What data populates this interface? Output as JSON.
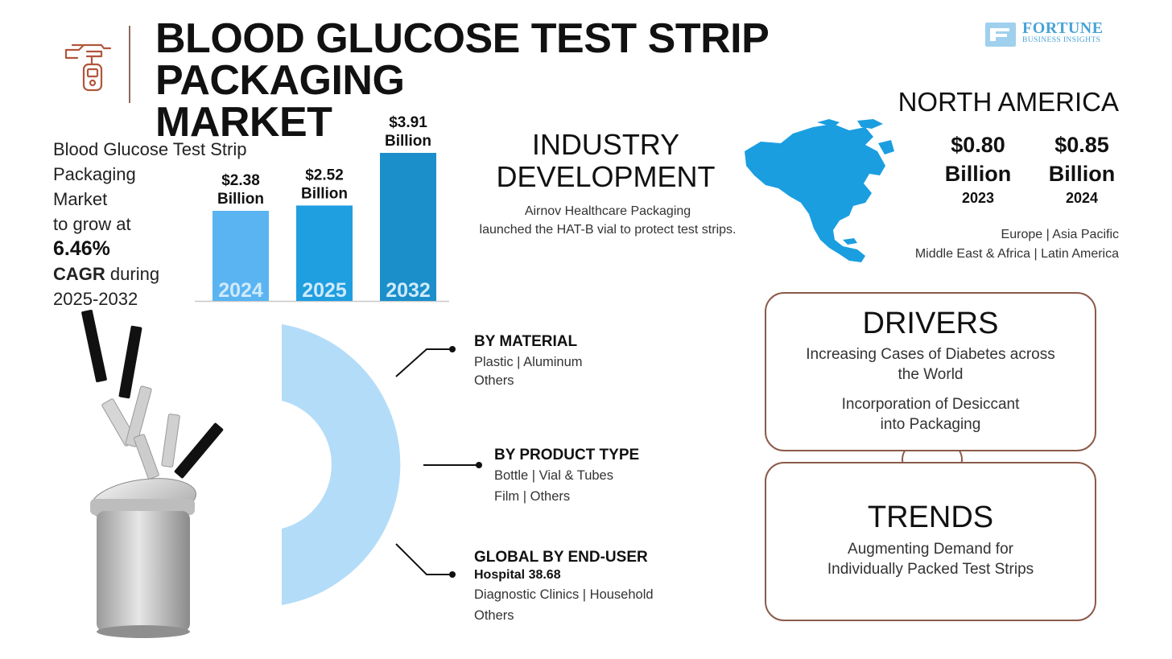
{
  "header": {
    "title_line1": "BLOOD GLUCOSE TEST STRIP PACKAGING",
    "title_line2": "MARKET",
    "logo_name": "FORTUNE",
    "logo_sub": "BUSINESS INSIGHTS",
    "icon": "test-strip-meter-icon"
  },
  "cagr_block": {
    "line1": "Blood Glucose Test Strip",
    "line2": "Packaging",
    "line3": "Market",
    "line4": "to grow at",
    "rate": "6.46%",
    "cagr_word": "CAGR",
    "during": " during",
    "period": "2025-2032"
  },
  "chart_data": {
    "type": "bar",
    "categories": [
      "2024",
      "2025",
      "2032"
    ],
    "values": [
      2.38,
      2.52,
      3.91
    ],
    "value_labels": [
      [
        "$2.38",
        "Billion"
      ],
      [
        "$2.52",
        "Billion"
      ],
      [
        "$3.91",
        "Billion"
      ]
    ],
    "unit": "Billion USD",
    "colors": [
      "#5ab4f2",
      "#1f9ee0",
      "#1a8fca"
    ],
    "title": "",
    "xlabel": "",
    "ylabel": ""
  },
  "industry": {
    "title_line1": "INDUSTRY",
    "title_line2": "DEVELOPMENT",
    "text_line1": "Airnov Healthcare Packaging",
    "text_line2": "launched the HAT-B vial to protect test strips."
  },
  "north_america": {
    "title": "NORTH AMERICA",
    "values": [
      {
        "amount": "$0.80",
        "unit": "Billion",
        "year": "2023"
      },
      {
        "amount": "$0.85",
        "unit": "Billion",
        "year": "2024"
      }
    ],
    "regions_line1": "Europe  |  Asia Pacific",
    "regions_line2": "Middle East & Africa  |  Latin America",
    "map_color": "#1a9ee0"
  },
  "segments": {
    "material": {
      "title": "BY MATERIAL",
      "line1": "Plastic  |  Aluminum",
      "line2": "Others"
    },
    "product": {
      "title": "BY PRODUCT TYPE",
      "line1": "Bottle  |  Vial & Tubes",
      "line2": "Film  |  Others"
    },
    "end_user": {
      "title": "GLOBAL BY END-USER",
      "bold_line": "Hospital  38.68",
      "line1": "Diagnostic Clinics  |  Household",
      "line2": "Others"
    },
    "donut_color": "#b3dcf8"
  },
  "drivers": {
    "title": "DRIVERS",
    "item1_line1": "Increasing Cases of Diabetes across",
    "item1_line2": "the World",
    "item2_line1": "Incorporation of Desiccant",
    "item2_line2": "into Packaging"
  },
  "trends": {
    "title": "TRENDS",
    "line1": "Augmenting Demand for",
    "line2": "Individually Packed Test Strips"
  },
  "colors": {
    "accent_brown": "#8b5a4a",
    "brand_blue": "#4aa3d6"
  }
}
